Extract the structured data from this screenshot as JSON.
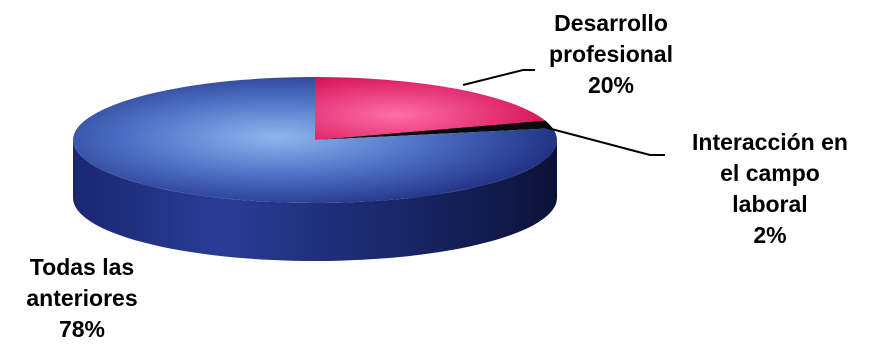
{
  "chart_data": {
    "type": "pie",
    "style": "3d",
    "categories": [
      "Desarrollo profesional",
      "Interacción en el campo laboral",
      "Todas las anteriores"
    ],
    "values": [
      20,
      2,
      78
    ],
    "unit": "%",
    "label_lines": [
      [
        "Desarrollo",
        "profesional"
      ],
      [
        "Interacción en",
        "el campo",
        "laboral"
      ],
      [
        "Todas las",
        "anteriores"
      ]
    ],
    "value_labels": [
      "20%",
      "2%",
      "78%"
    ],
    "colors": [
      "#e0105c",
      "#0a0a0a",
      "#1c2f86"
    ],
    "legend": "none"
  }
}
